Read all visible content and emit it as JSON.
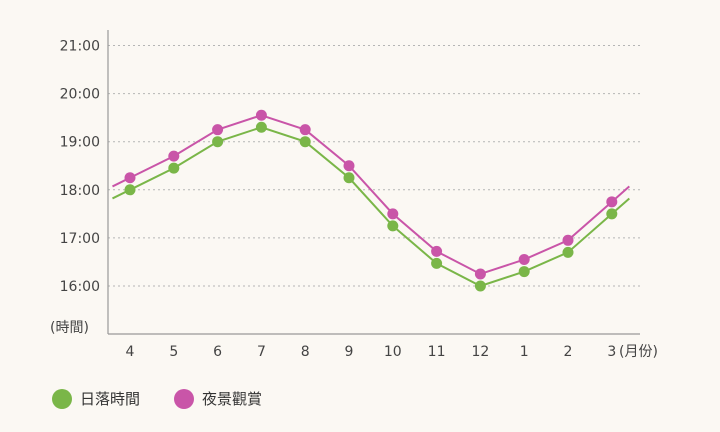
{
  "chart_data": {
    "type": "line",
    "categories": [
      "4",
      "5",
      "6",
      "7",
      "8",
      "9",
      "10",
      "11",
      "12",
      "1",
      "2",
      "3"
    ],
    "x_unit_label": "(月份)",
    "y_unit_label": "(時間)",
    "y_ticks": [
      "16:00",
      "17:00",
      "18:00",
      "19:00",
      "20:00",
      "21:00"
    ],
    "ylim": [
      15.0,
      21.0
    ],
    "grid": true,
    "legend_position": "bottom-left",
    "series": [
      {
        "name": "日落時間",
        "color": "#7ab648",
        "values": [
          18.0,
          18.45,
          19.0,
          19.3,
          19.0,
          18.25,
          17.25,
          16.47,
          16.0,
          16.3,
          16.7,
          17.5
        ]
      },
      {
        "name": "夜景觀賞",
        "color": "#c955a8",
        "values": [
          18.25,
          18.7,
          19.25,
          19.55,
          19.25,
          18.5,
          17.5,
          16.72,
          16.25,
          16.55,
          16.95,
          17.75
        ]
      }
    ]
  }
}
